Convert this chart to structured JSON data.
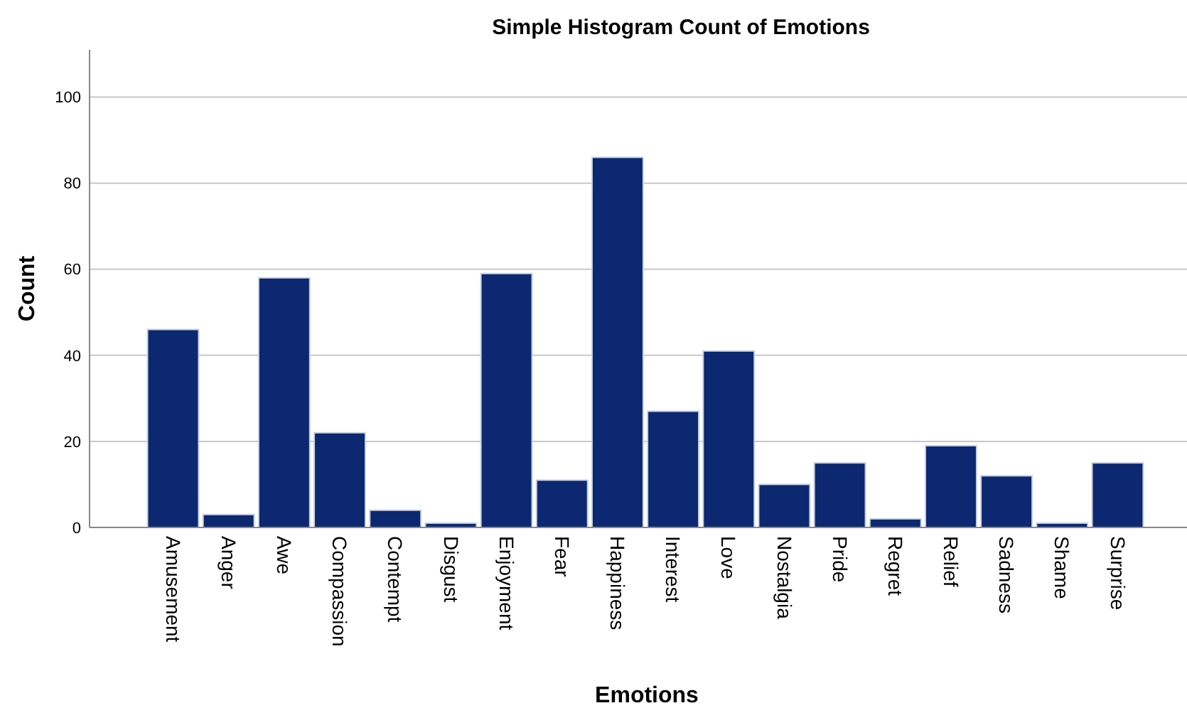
{
  "chart_data": {
    "type": "bar",
    "title": "Simple Histogram Count of Emotions",
    "xlabel": "Emotions",
    "ylabel": "Count",
    "categories": [
      "Amusement",
      "Anger",
      "Awe",
      "Compassion",
      "Contempt",
      "Disgust",
      "Enjoyment",
      "Fear",
      "Happiness",
      "Interest",
      "Love",
      "Nostalgia",
      "Pride",
      "Regret",
      "Relief",
      "Sadness",
      "Shame",
      "Surprise"
    ],
    "values": [
      46,
      3,
      58,
      22,
      4,
      1,
      59,
      11,
      86,
      27,
      41,
      10,
      15,
      2,
      19,
      12,
      1,
      15
    ],
    "color": "#0b2870",
    "ylim": [
      0,
      111
    ],
    "yticks": [
      0,
      20,
      40,
      60,
      80,
      100
    ],
    "grid": "y"
  }
}
